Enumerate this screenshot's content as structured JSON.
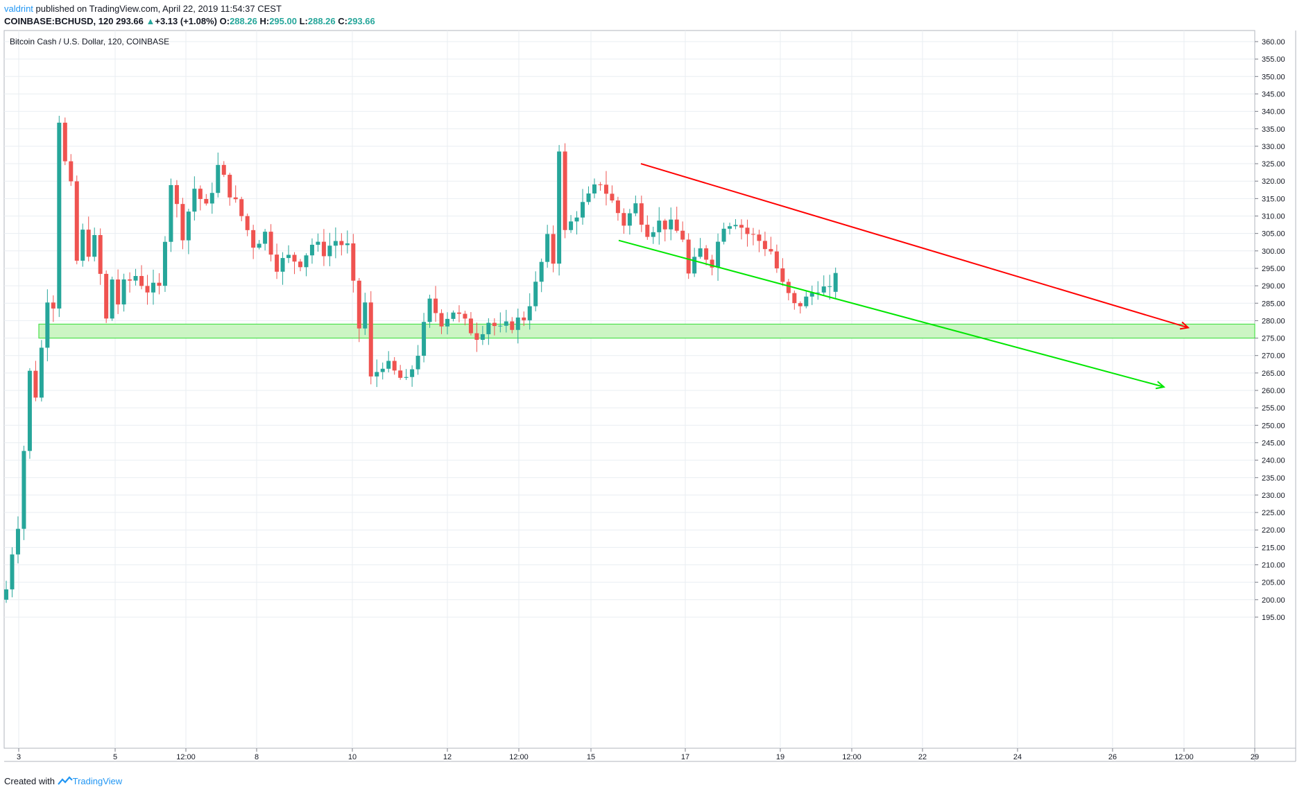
{
  "header": {
    "user": "valdrint",
    "published": "published on TradingView.com, April 22, 2019 11:54:37 CEST"
  },
  "symbol_line": {
    "symbol": "COINBASE:BCHUSD, 120",
    "last": "293.66",
    "change": "+3.13 (+1.08%)",
    "o_label": "O:",
    "o": "288.26",
    "h_label": "H:",
    "h": "295.00",
    "l_label": "L:",
    "l": "288.26",
    "c_label": "C:",
    "c": "293.66"
  },
  "footer": {
    "created_with": "Created with",
    "brand": "TradingView"
  },
  "colors": {
    "up": "#26a69a",
    "down": "#ef5350",
    "resistance": "#ff0000",
    "support": "#00e600",
    "zone_fill": "#ccf5c4",
    "zone_stroke": "#4ce04c",
    "grid": "#e9eef2"
  },
  "chart_data": {
    "type": "candlestick",
    "title": "Bitcoin Cash / U.S. Dollar, 120, COINBASE",
    "ylim": [
      190,
      362
    ],
    "y_ticks": [
      "360.00",
      "355.00",
      "350.00",
      "345.00",
      "340.00",
      "335.00",
      "330.00",
      "325.00",
      "320.00",
      "315.00",
      "310.00",
      "305.00",
      "300.00",
      "295.00",
      "290.00",
      "285.00",
      "280.00",
      "275.00",
      "270.00",
      "265.00",
      "260.00",
      "255.00",
      "250.00",
      "245.00",
      "240.00",
      "235.00",
      "230.00",
      "225.00",
      "220.00",
      "215.00",
      "210.00",
      "205.00",
      "200.00",
      "195.00"
    ],
    "x_ticks": [
      "3",
      "5",
      "12:00",
      "8",
      "10",
      "12",
      "12:00",
      "15",
      "17",
      "19",
      "12:00",
      "22",
      "24",
      "26",
      "12:00",
      "29"
    ],
    "grid": true,
    "price_anchors": [
      [
        0,
        203
      ],
      [
        1,
        214
      ],
      [
        2,
        222
      ],
      [
        3,
        243
      ],
      [
        4,
        265
      ],
      [
        5,
        259
      ],
      [
        6,
        272
      ],
      [
        7,
        287
      ],
      [
        8,
        285
      ],
      [
        9,
        338
      ],
      [
        10,
        325
      ],
      [
        11,
        318
      ],
      [
        12,
        297
      ],
      [
        13,
        305
      ],
      [
        14,
        300
      ],
      [
        15,
        303
      ],
      [
        16,
        293
      ],
      [
        17,
        280
      ],
      [
        18,
        292
      ],
      [
        19,
        285
      ],
      [
        20,
        290
      ],
      [
        22,
        293
      ],
      [
        24,
        289
      ],
      [
        26,
        289
      ],
      [
        28,
        320
      ],
      [
        30,
        305
      ],
      [
        32,
        318
      ],
      [
        34,
        312
      ],
      [
        36,
        324
      ],
      [
        38,
        317
      ],
      [
        40,
        310
      ],
      [
        42,
        302
      ],
      [
        44,
        305
      ],
      [
        46,
        296
      ],
      [
        48,
        298
      ],
      [
        50,
        297
      ],
      [
        52,
        302
      ],
      [
        54,
        300
      ],
      [
        56,
        303
      ],
      [
        58,
        301
      ],
      [
        60,
        278
      ],
      [
        61,
        285
      ],
      [
        62,
        263
      ],
      [
        64,
        268
      ],
      [
        66,
        265
      ],
      [
        68,
        262
      ],
      [
        70,
        271
      ],
      [
        72,
        285
      ],
      [
        74,
        280
      ],
      [
        76,
        283
      ],
      [
        78,
        279
      ],
      [
        80,
        276
      ],
      [
        82,
        280
      ],
      [
        84,
        277
      ],
      [
        86,
        279
      ],
      [
        88,
        281
      ],
      [
        90,
        290
      ],
      [
        92,
        303
      ],
      [
        93,
        297
      ],
      [
        94,
        330
      ],
      [
        95,
        305
      ],
      [
        97,
        311
      ],
      [
        99,
        315
      ],
      [
        101,
        320
      ],
      [
        103,
        314
      ],
      [
        105,
        308
      ],
      [
        107,
        313
      ],
      [
        109,
        306
      ],
      [
        111,
        308
      ],
      [
        113,
        307
      ],
      [
        115,
        304
      ],
      [
        116,
        293
      ],
      [
        118,
        300
      ],
      [
        120,
        297
      ],
      [
        122,
        308
      ],
      [
        124,
        309
      ],
      [
        126,
        305
      ],
      [
        128,
        303
      ],
      [
        130,
        300
      ],
      [
        132,
        290
      ],
      [
        134,
        284
      ],
      [
        136,
        286
      ],
      [
        138,
        290
      ],
      [
        140,
        288
      ],
      [
        141,
        293.66
      ]
    ],
    "annotations": {
      "resistance_line": {
        "from": [
          "Apr 16",
          325
        ],
        "to": [
          "Apr 28 12:00",
          278
        ]
      },
      "support_line": {
        "from": [
          "Apr 15",
          303
        ],
        "to": [
          "Apr 28",
          261
        ]
      },
      "support_zone": {
        "low": 275,
        "high": 279
      }
    }
  }
}
